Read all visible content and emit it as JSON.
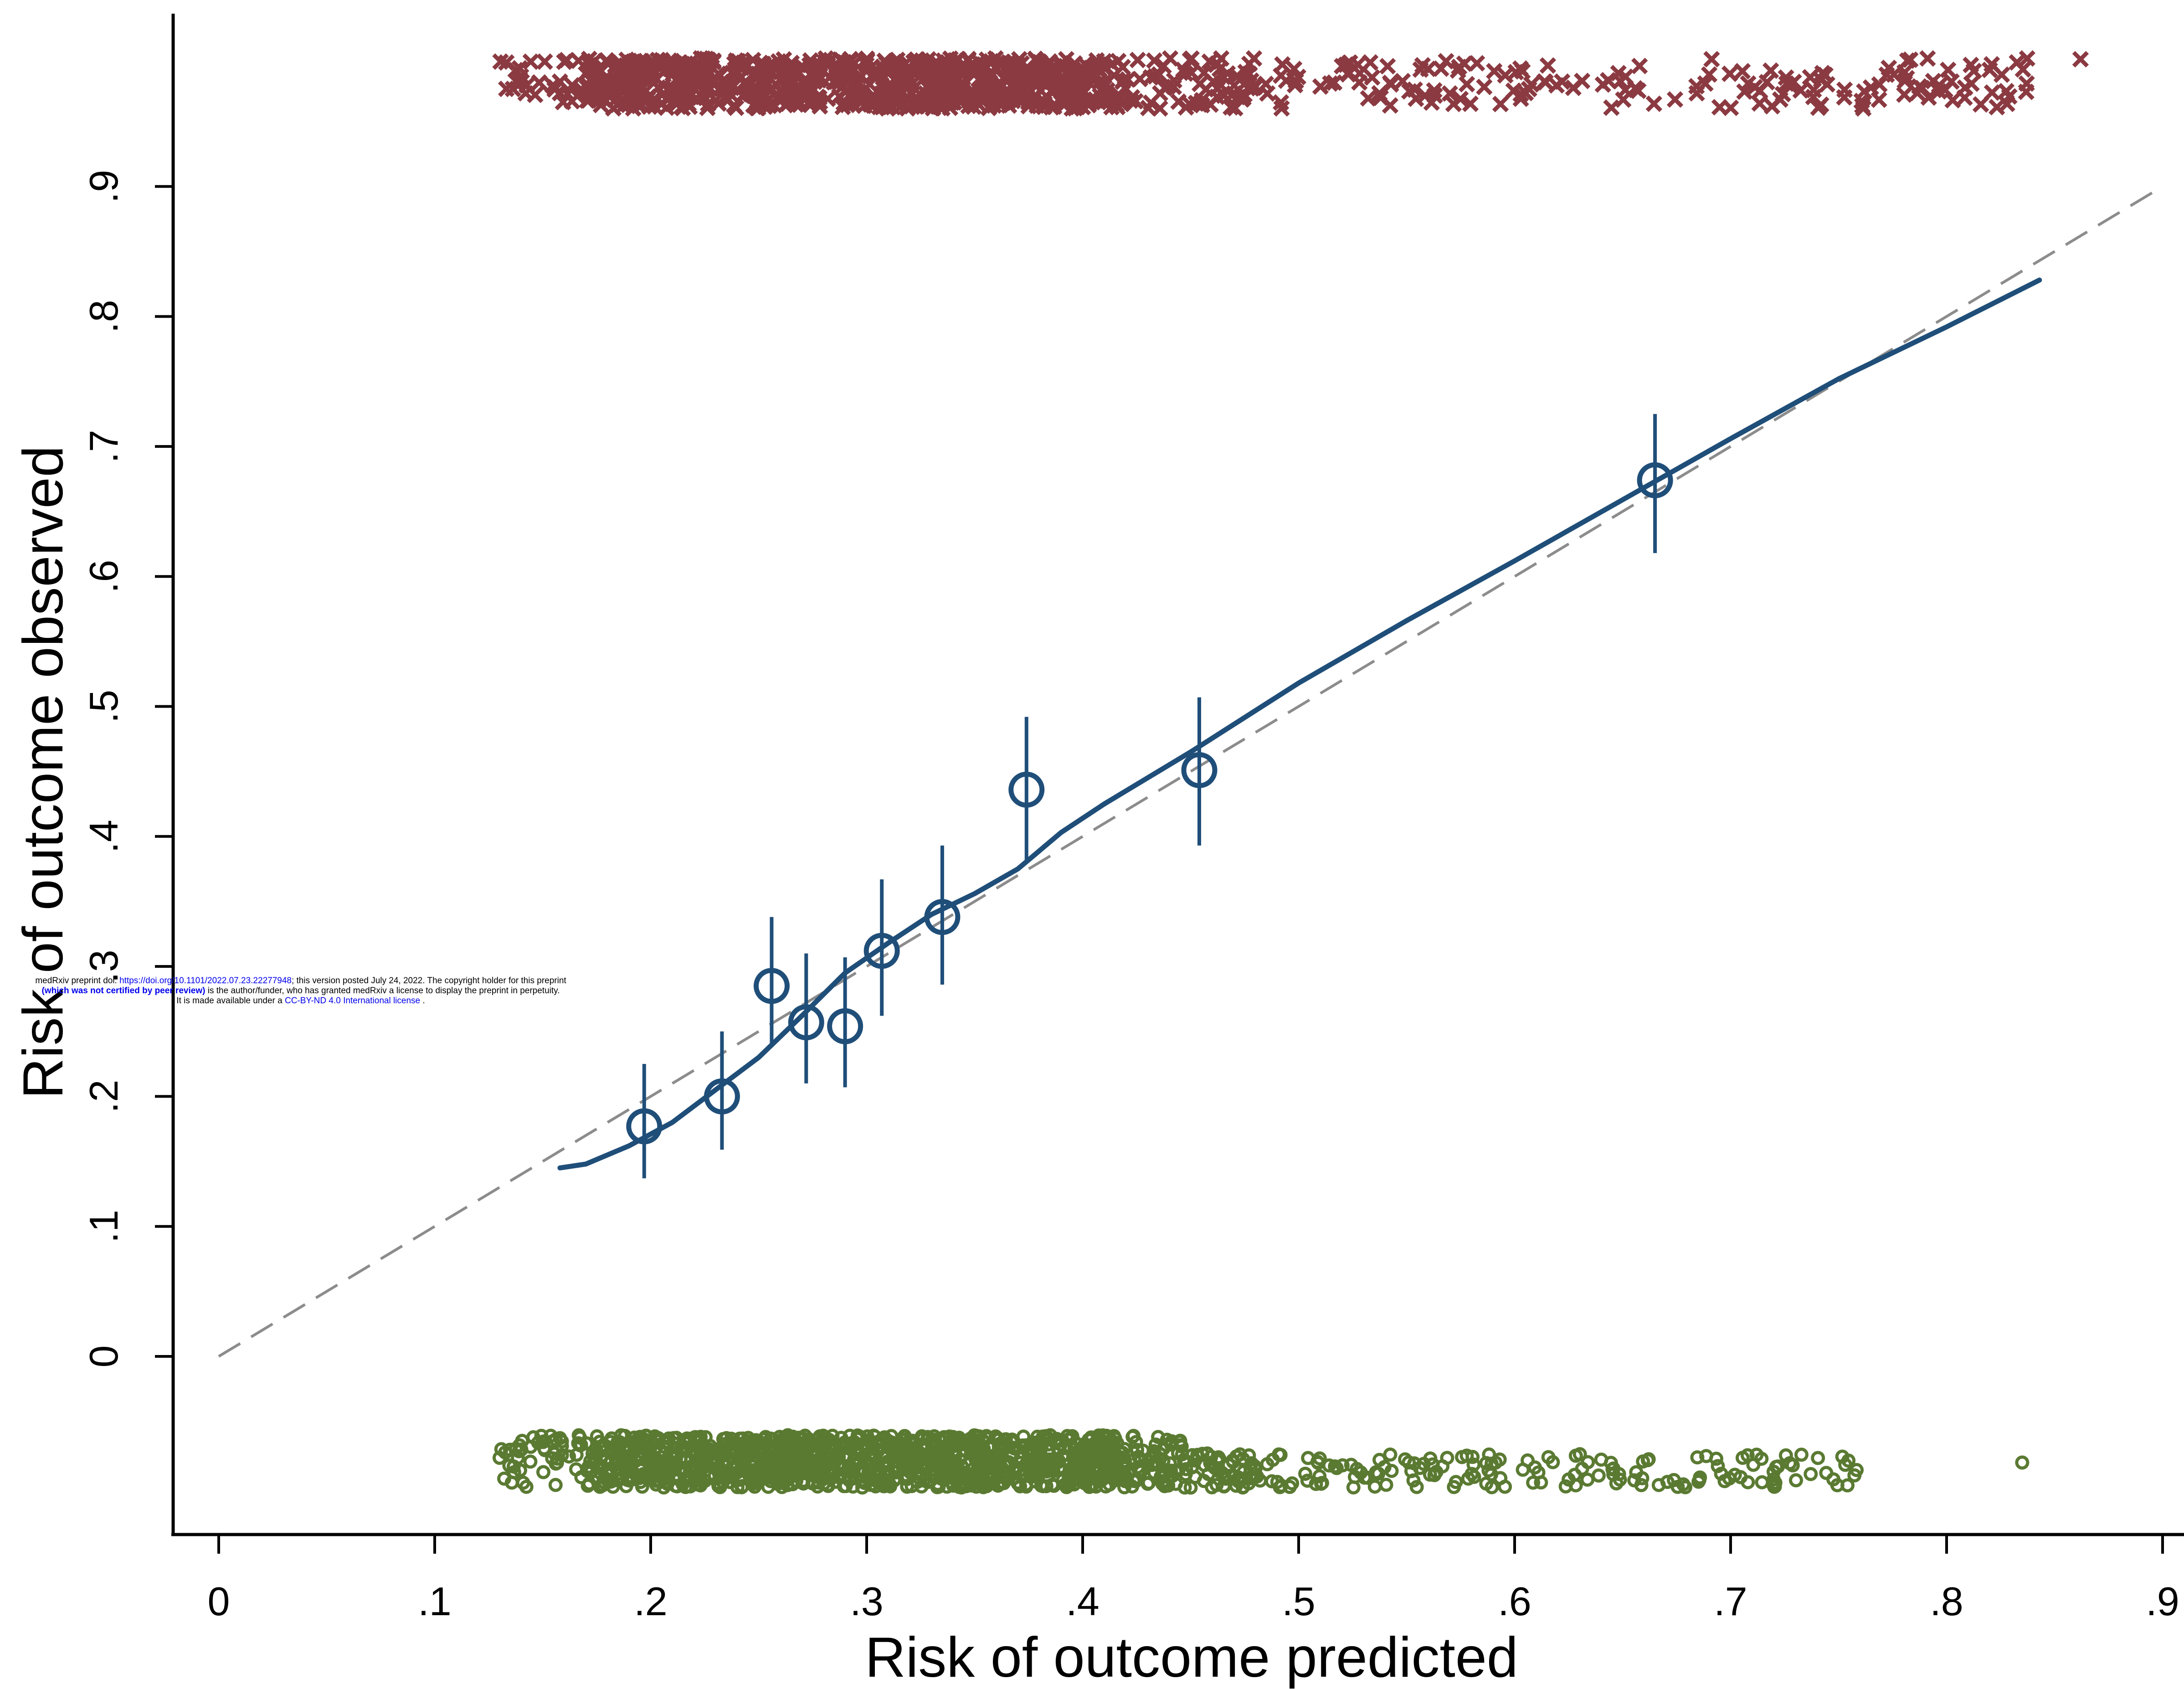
{
  "chart_data": {
    "type": "scatter",
    "title": "",
    "xlabel": "Risk of outcome predicted",
    "ylabel": "Risk of outcome observed",
    "xlim": [
      0,
      0.9
    ],
    "ylim": [
      -0.136,
      1.0
    ],
    "x_ticks": [
      "0",
      ".1",
      ".2",
      ".3",
      ".4",
      ".5",
      ".6",
      ".7",
      ".8",
      ".9"
    ],
    "y_ticks": [
      "0",
      ".1",
      ".2",
      ".3",
      ".4",
      ".5",
      ".6",
      ".7",
      ".8",
      ".9"
    ],
    "grid": false,
    "legend": "none",
    "colors": {
      "calibration": "#1f4e79",
      "reference": "#8c8c8c",
      "events": "#8b3a42",
      "non_events": "#5a7a32"
    },
    "series": [
      {
        "type": "points_with_ci",
        "points": [
          {
            "x": 0.197,
            "y": 0.177,
            "lo": 0.137,
            "hi": 0.225
          },
          {
            "x": 0.233,
            "y": 0.2,
            "lo": 0.159,
            "hi": 0.25
          },
          {
            "x": 0.256,
            "y": 0.285,
            "lo": 0.238,
            "hi": 0.338
          },
          {
            "x": 0.272,
            "y": 0.257,
            "lo": 0.21,
            "hi": 0.31
          },
          {
            "x": 0.29,
            "y": 0.254,
            "lo": 0.207,
            "hi": 0.307
          },
          {
            "x": 0.307,
            "y": 0.312,
            "lo": 0.262,
            "hi": 0.367
          },
          {
            "x": 0.335,
            "y": 0.338,
            "lo": 0.286,
            "hi": 0.393
          },
          {
            "x": 0.374,
            "y": 0.436,
            "lo": 0.382,
            "hi": 0.492
          },
          {
            "x": 0.454,
            "y": 0.451,
            "lo": 0.393,
            "hi": 0.507
          },
          {
            "x": 0.665,
            "y": 0.674,
            "lo": 0.618,
            "hi": 0.725
          }
        ]
      },
      {
        "type": "smooth_line",
        "x": [
          0.158,
          0.17,
          0.19,
          0.21,
          0.23,
          0.25,
          0.27,
          0.29,
          0.31,
          0.33,
          0.35,
          0.37,
          0.39,
          0.41,
          0.43,
          0.45,
          0.5,
          0.55,
          0.6,
          0.65,
          0.7,
          0.75,
          0.8,
          0.843
        ],
        "y": [
          0.145,
          0.148,
          0.162,
          0.18,
          0.205,
          0.23,
          0.262,
          0.295,
          0.318,
          0.34,
          0.356,
          0.375,
          0.403,
          0.425,
          0.445,
          0.465,
          0.518,
          0.566,
          0.612,
          0.659,
          0.706,
          0.752,
          0.792,
          0.828
        ]
      },
      {
        "type": "reference_line",
        "x": [
          0,
          0.9
        ],
        "y": [
          0,
          0.9
        ]
      },
      {
        "type": "spike_events",
        "x_range": [
          0.13,
          0.86
        ]
      },
      {
        "type": "spike_non_events",
        "x_range": [
          0.13,
          0.84
        ]
      }
    ]
  },
  "watermark": {
    "line1_a": "medRxiv preprint doi: ",
    "line1_link": "https://doi.org/10.1101/2022.07.23.22277948",
    "line1_b": "; this version posted July 24, 2022. The copyright holder for this preprint",
    "line2_bold": "(which was not certified by peer review)",
    "line2_b": " is the author/funder, who has granted medRxiv a license to display the preprint in perpetuity.",
    "line3_a": "It is made available under a ",
    "line3_link": "CC-BY-ND 4.0 International license",
    "line3_b": " ."
  }
}
